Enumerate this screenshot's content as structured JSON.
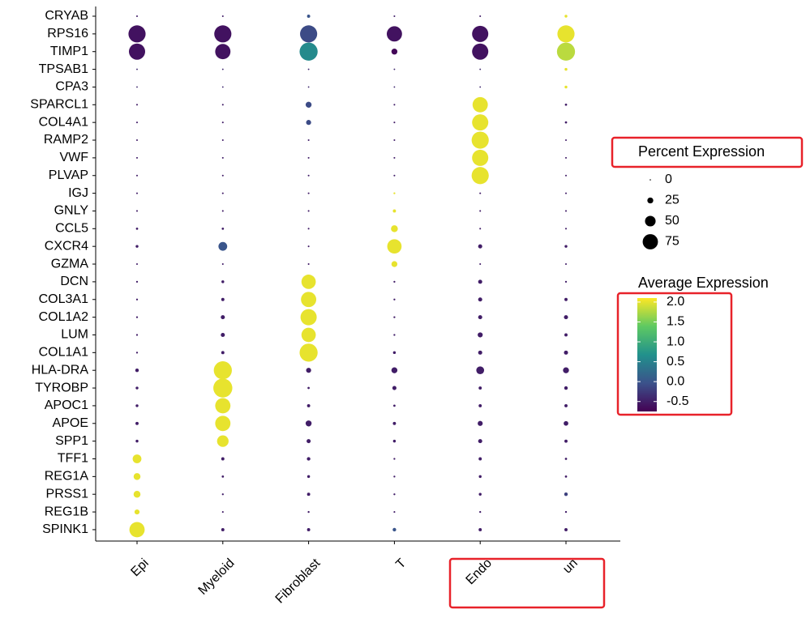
{
  "chart_data": {
    "type": "dot",
    "categories": [
      "Epi",
      "Myeloid",
      "Fibroblast",
      "T",
      "Endo",
      "un"
    ],
    "genes": [
      "CRYAB",
      "RPS16",
      "TIMP1",
      "TPSAB1",
      "CPA3",
      "SPARCL1",
      "COL4A1",
      "RAMP2",
      "VWF",
      "PLVAP",
      "IGJ",
      "GNLY",
      "CCL5",
      "CXCR4",
      "GZMA",
      "DCN",
      "COL3A1",
      "COL1A2",
      "LUM",
      "COL1A1",
      "HLA-DRA",
      "TYROBP",
      "APOC1",
      "APOE",
      "SPP1",
      "TFF1",
      "REG1A",
      "PRSS1",
      "REG1B",
      "SPINK1"
    ],
    "percent": [
      [
        2,
        2,
        10,
        2,
        2,
        8
      ],
      [
        85,
        85,
        85,
        75,
        80,
        85
      ],
      [
        80,
        75,
        90,
        25,
        80,
        90
      ],
      [
        1,
        1,
        1,
        1,
        1,
        8
      ],
      [
        1,
        1,
        1,
        1,
        1,
        8
      ],
      [
        2,
        2,
        25,
        2,
        75,
        5
      ],
      [
        2,
        2,
        20,
        2,
        80,
        5
      ],
      [
        2,
        2,
        2,
        2,
        85,
        2
      ],
      [
        2,
        2,
        2,
        2,
        80,
        2
      ],
      [
        2,
        2,
        2,
        2,
        85,
        2
      ],
      [
        2,
        2,
        2,
        3,
        2,
        2
      ],
      [
        2,
        2,
        2,
        10,
        2,
        2
      ],
      [
        5,
        5,
        2,
        30,
        2,
        2
      ],
      [
        8,
        40,
        2,
        70,
        15,
        8
      ],
      [
        2,
        2,
        2,
        25,
        2,
        2
      ],
      [
        3,
        8,
        70,
        3,
        15,
        3
      ],
      [
        3,
        10,
        75,
        3,
        15,
        10
      ],
      [
        3,
        15,
        80,
        3,
        15,
        15
      ],
      [
        3,
        15,
        70,
        3,
        20,
        10
      ],
      [
        3,
        10,
        90,
        8,
        15,
        15
      ],
      [
        12,
        90,
        20,
        25,
        35,
        25
      ],
      [
        8,
        95,
        5,
        15,
        10,
        12
      ],
      [
        8,
        75,
        10,
        5,
        10,
        10
      ],
      [
        10,
        75,
        25,
        10,
        20,
        18
      ],
      [
        8,
        55,
        15,
        8,
        15,
        10
      ],
      [
        40,
        10,
        12,
        3,
        10,
        5
      ],
      [
        30,
        5,
        8,
        3,
        8,
        5
      ],
      [
        30,
        3,
        10,
        3,
        8,
        12
      ],
      [
        20,
        2,
        3,
        2,
        3,
        3
      ],
      [
        75,
        10,
        10,
        12,
        10,
        10
      ]
    ],
    "average": [
      [
        -0.5,
        -0.5,
        0.0,
        -0.5,
        -0.5,
        2.0
      ],
      [
        -0.6,
        -0.6,
        -0.1,
        -0.6,
        -0.6,
        2.0
      ],
      [
        -0.6,
        -0.6,
        0.6,
        -0.7,
        -0.6,
        1.8
      ],
      [
        -0.4,
        -0.4,
        -0.4,
        -0.4,
        -0.4,
        2.0
      ],
      [
        -0.4,
        -0.4,
        -0.4,
        -0.4,
        -0.4,
        2.0
      ],
      [
        -0.5,
        -0.5,
        -0.1,
        -0.5,
        2.0,
        -0.5
      ],
      [
        -0.5,
        -0.5,
        -0.1,
        -0.5,
        2.0,
        -0.5
      ],
      [
        -0.5,
        -0.5,
        -0.5,
        -0.5,
        2.0,
        -0.5
      ],
      [
        -0.5,
        -0.5,
        -0.5,
        -0.5,
        2.0,
        -0.5
      ],
      [
        -0.5,
        -0.5,
        -0.5,
        -0.5,
        2.0,
        -0.5
      ],
      [
        -0.5,
        -0.5,
        -0.5,
        2.0,
        -0.5,
        -0.5
      ],
      [
        -0.5,
        -0.5,
        -0.5,
        2.0,
        -0.5,
        -0.5
      ],
      [
        -0.5,
        -0.5,
        -0.5,
        2.0,
        -0.5,
        -0.5
      ],
      [
        -0.5,
        0.0,
        -0.5,
        2.0,
        -0.5,
        -0.5
      ],
      [
        -0.5,
        -0.5,
        -0.5,
        2.0,
        -0.5,
        -0.5
      ],
      [
        -0.5,
        -0.5,
        2.0,
        -0.5,
        -0.5,
        -0.5
      ],
      [
        -0.5,
        -0.5,
        2.0,
        -0.5,
        -0.5,
        -0.5
      ],
      [
        -0.5,
        -0.5,
        2.0,
        -0.5,
        -0.5,
        -0.5
      ],
      [
        -0.5,
        -0.5,
        2.0,
        -0.5,
        -0.5,
        -0.5
      ],
      [
        -0.5,
        -0.5,
        2.0,
        -0.5,
        -0.5,
        -0.5
      ],
      [
        -0.5,
        2.0,
        -0.5,
        -0.5,
        -0.5,
        -0.5
      ],
      [
        -0.5,
        2.0,
        -0.5,
        -0.5,
        -0.5,
        -0.5
      ],
      [
        -0.5,
        2.0,
        -0.5,
        -0.5,
        -0.5,
        -0.5
      ],
      [
        -0.5,
        2.0,
        -0.5,
        -0.5,
        -0.5,
        -0.5
      ],
      [
        -0.5,
        2.0,
        -0.5,
        -0.5,
        -0.5,
        -0.5
      ],
      [
        2.0,
        -0.5,
        -0.5,
        -0.5,
        -0.5,
        -0.5
      ],
      [
        2.0,
        -0.5,
        -0.5,
        -0.5,
        -0.5,
        -0.5
      ],
      [
        2.0,
        -0.5,
        -0.5,
        -0.5,
        -0.5,
        -0.2
      ],
      [
        2.0,
        -0.5,
        -0.5,
        -0.5,
        -0.5,
        -0.5
      ],
      [
        2.0,
        -0.5,
        -0.5,
        0.0,
        -0.5,
        -0.5
      ]
    ],
    "size_legend_title": "Percent Expression",
    "size_legend_values": [
      0,
      25,
      50,
      75
    ],
    "color_legend_title": "Average Expression",
    "clim": [
      -0.75,
      2.1
    ],
    "cticks": [
      {
        "value": 2.0,
        "label": "2.0"
      },
      {
        "value": 1.5,
        "label": "1.5"
      },
      {
        "value": 1.0,
        "label": "1.0"
      },
      {
        "value": 0.5,
        "label": "0.5"
      },
      {
        "value": 0.0,
        "label": "0.0"
      },
      {
        "value": -0.5,
        "label": "-0.5"
      }
    ],
    "colormap": [
      "#440154",
      "#3b528b",
      "#21918c",
      "#5ec962",
      "#fde725"
    ]
  }
}
